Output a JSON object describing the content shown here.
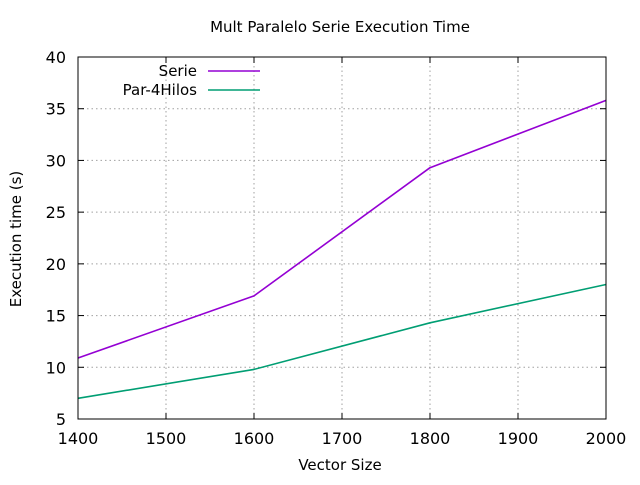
{
  "chart_data": {
    "type": "line",
    "title": "Mult Paralelo Serie Execution Time",
    "xlabel": "Vector Size",
    "ylabel": "Execution time (s)",
    "x": [
      1400,
      1600,
      1800,
      2000
    ],
    "xlim": [
      1400,
      2000
    ],
    "ylim": [
      5,
      40
    ],
    "xticks": [
      1400,
      1500,
      1600,
      1700,
      1800,
      1900,
      2000
    ],
    "yticks": [
      5,
      10,
      15,
      20,
      25,
      30,
      35,
      40
    ],
    "grid": true,
    "legend_position": "top-left",
    "series": [
      {
        "name": "Serie",
        "color": "#9400d3",
        "values": [
          10.9,
          16.9,
          29.3,
          35.8
        ]
      },
      {
        "name": "Par-4Hilos",
        "color": "#009e73",
        "values": [
          7.0,
          9.8,
          14.3,
          18.0
        ]
      }
    ]
  }
}
